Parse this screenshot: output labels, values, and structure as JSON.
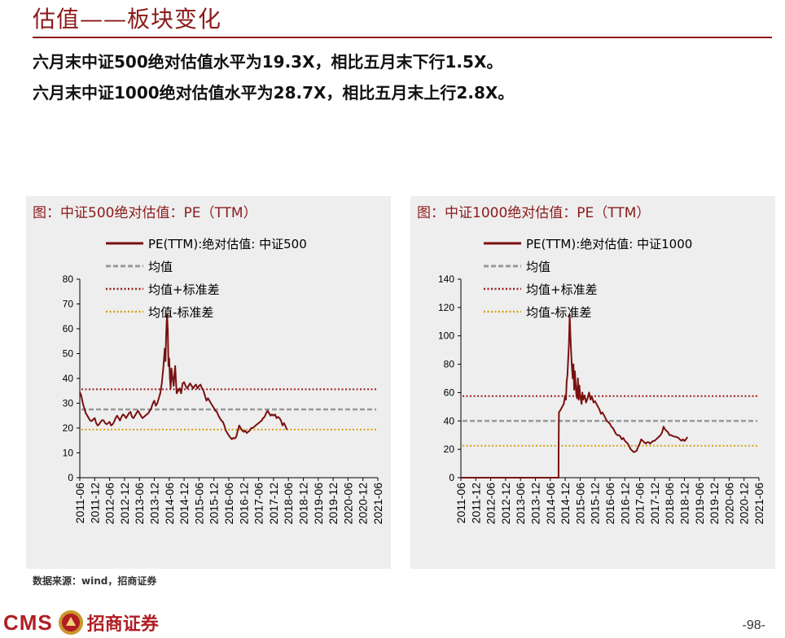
{
  "page": {
    "title": "估值——板块变化",
    "summary_lines": [
      "六月末中证500绝对估值水平为19.3X，相比五月末下行1.5X。",
      "六月末中证1000绝对估值水平为28.7X，相比五月末上行2.8X。"
    ],
    "source": "数据来源：wind，招商证券",
    "logo_text": "CMS",
    "logo_name": "招商证券",
    "page_number": "-98-"
  },
  "colors": {
    "title": "#8b1a1a",
    "series": "#7a1010",
    "mean": "#999999",
    "upper": "#9b1b1b",
    "lower": "#d4a017",
    "panel_bg": "#eeeeee",
    "brand": "#b01e23"
  },
  "chart_data": [
    {
      "type": "line",
      "panel_title": "图：中证500绝对估值：PE（TTM）",
      "legend": [
        "PE(TTM):绝对估值: 中证500",
        "均值",
        "均值+标准差",
        "均值-标准差"
      ],
      "legend_position": "top-left",
      "x_ticks": [
        "2011-06",
        "2011-12",
        "2012-06",
        "2012-12",
        "2013-06",
        "2013-12",
        "2014-06",
        "2014-12",
        "2015-06",
        "2015-12",
        "2016-06",
        "2016-12",
        "2017-06",
        "2017-12",
        "2018-06",
        "2018-12",
        "2019-06",
        "2019-12",
        "2020-06",
        "2020-12",
        "2021-06"
      ],
      "ylim": [
        0,
        80
      ],
      "y_ticks": [
        0,
        10,
        20,
        30,
        40,
        50,
        60,
        70,
        80
      ],
      "grid": false,
      "mean": 27.5,
      "mean_plus_std": 35.6,
      "mean_minus_std": 19.4,
      "series": [
        {
          "name": "PE(TTM):绝对估值: 中证500",
          "points": [
            [
              0,
              34.5
            ],
            [
              0.1,
              33
            ],
            [
              0.2,
              30
            ],
            [
              0.3,
              28
            ],
            [
              0.4,
              26
            ],
            [
              0.5,
              25
            ],
            [
              0.6,
              24
            ],
            [
              0.7,
              23
            ],
            [
              0.8,
              22.8
            ],
            [
              0.9,
              23.5
            ],
            [
              1.0,
              24
            ],
            [
              1.1,
              22
            ],
            [
              1.2,
              21
            ],
            [
              1.3,
              21.5
            ],
            [
              1.4,
              22.5
            ],
            [
              1.5,
              23.2
            ],
            [
              1.6,
              23
            ],
            [
              1.7,
              22
            ],
            [
              1.8,
              21.5
            ],
            [
              1.9,
              22
            ],
            [
              2.0,
              22.5
            ],
            [
              2.1,
              21
            ],
            [
              2.2,
              21.5
            ],
            [
              2.3,
              22.5
            ],
            [
              2.4,
              24
            ],
            [
              2.5,
              25
            ],
            [
              2.6,
              24
            ],
            [
              2.7,
              23
            ],
            [
              2.8,
              24.5
            ],
            [
              2.9,
              25.5
            ],
            [
              3.0,
              25
            ],
            [
              3.1,
              24
            ],
            [
              3.2,
              25
            ],
            [
              3.3,
              26
            ],
            [
              3.4,
              26.5
            ],
            [
              3.5,
              24.5
            ],
            [
              3.6,
              24
            ],
            [
              3.7,
              25
            ],
            [
              3.8,
              26
            ],
            [
              3.9,
              27
            ],
            [
              4.0,
              26
            ],
            [
              4.1,
              25
            ],
            [
              4.2,
              24
            ],
            [
              4.3,
              24.5
            ],
            [
              4.4,
              25
            ],
            [
              4.5,
              25.5
            ],
            [
              4.6,
              26
            ],
            [
              4.7,
              27
            ],
            [
              4.8,
              28
            ],
            [
              4.9,
              30
            ],
            [
              5.0,
              31
            ],
            [
              5.1,
              29
            ],
            [
              5.2,
              30
            ],
            [
              5.3,
              32
            ],
            [
              5.4,
              34
            ],
            [
              5.5,
              38
            ],
            [
              5.6,
              44
            ],
            [
              5.7,
              52
            ],
            [
              5.75,
              47
            ],
            [
              5.8,
              58
            ],
            [
              5.85,
              66
            ],
            [
              5.9,
              60
            ],
            [
              5.95,
              45
            ],
            [
              6.0,
              48
            ],
            [
              6.05,
              40
            ],
            [
              6.1,
              36
            ],
            [
              6.15,
              44
            ],
            [
              6.2,
              41
            ],
            [
              6.3,
              37
            ],
            [
              6.35,
              42
            ],
            [
              6.4,
              45
            ],
            [
              6.5,
              34
            ],
            [
              6.6,
              35
            ],
            [
              6.7,
              36
            ],
            [
              6.8,
              34
            ],
            [
              6.9,
              38
            ],
            [
              7.0,
              38.5
            ],
            [
              7.1,
              37
            ],
            [
              7.2,
              36
            ],
            [
              7.3,
              37
            ],
            [
              7.4,
              38
            ],
            [
              7.5,
              37
            ],
            [
              7.6,
              36
            ],
            [
              7.7,
              37
            ],
            [
              7.8,
              37.5
            ],
            [
              7.9,
              36
            ],
            [
              8.0,
              37
            ],
            [
              8.1,
              37.5
            ],
            [
              8.2,
              36
            ],
            [
              8.3,
              35
            ],
            [
              8.4,
              33
            ],
            [
              8.5,
              31
            ],
            [
              8.6,
              32
            ],
            [
              8.7,
              31
            ],
            [
              8.8,
              30
            ],
            [
              8.9,
              29
            ],
            [
              9.0,
              28
            ],
            [
              9.1,
              27
            ],
            [
              9.2,
              26.5
            ],
            [
              9.3,
              25
            ],
            [
              9.4,
              24
            ],
            [
              9.5,
              23
            ],
            [
              9.6,
              22.5
            ],
            [
              9.7,
              21
            ],
            [
              9.8,
              19
            ],
            [
              9.9,
              18
            ],
            [
              10.0,
              17
            ],
            [
              10.1,
              16.2
            ],
            [
              10.2,
              15.5
            ],
            [
              10.3,
              16
            ],
            [
              10.4,
              15.8
            ],
            [
              10.5,
              16.5
            ],
            [
              10.6,
              19
            ],
            [
              10.7,
              21
            ],
            [
              10.8,
              20
            ],
            [
              10.9,
              19
            ],
            [
              11.0,
              18.5
            ],
            [
              11.1,
              19
            ],
            [
              11.2,
              18
            ],
            [
              11.3,
              18.5
            ],
            [
              11.4,
              19
            ],
            [
              11.5,
              20
            ],
            [
              11.6,
              20
            ],
            [
              11.7,
              20.5
            ],
            [
              11.8,
              21
            ],
            [
              11.9,
              21.5
            ],
            [
              12.0,
              22
            ],
            [
              12.1,
              22.5
            ],
            [
              12.2,
              23
            ],
            [
              12.3,
              24
            ],
            [
              12.4,
              24.5
            ],
            [
              12.5,
              26
            ],
            [
              12.6,
              27
            ],
            [
              12.7,
              26
            ],
            [
              12.8,
              25
            ],
            [
              12.9,
              25.5
            ],
            [
              13.0,
              25
            ],
            [
              13.1,
              25.5
            ],
            [
              13.2,
              24
            ],
            [
              13.3,
              24.5
            ],
            [
              13.4,
              24
            ],
            [
              13.5,
              23
            ],
            [
              13.6,
              21
            ],
            [
              13.7,
              22
            ],
            [
              13.8,
              20.8
            ],
            [
              13.9,
              19.3
            ]
          ]
        }
      ]
    },
    {
      "type": "line",
      "panel_title": "图：中证1000绝对估值：PE（TTM）",
      "legend": [
        "PE(TTM):绝对估值: 中证1000",
        "均值",
        "均值+标准差",
        "均值-标准差"
      ],
      "legend_position": "top-left",
      "x_ticks": [
        "2011-06",
        "2011-12",
        "2012-06",
        "2012-12",
        "2013-06",
        "2013-12",
        "2014-06",
        "2014-12",
        "2015-06",
        "2015-12",
        "2016-06",
        "2016-12",
        "2017-06",
        "2017-12",
        "2018-06",
        "2018-12",
        "2019-06",
        "2019-12",
        "2020-06",
        "2020-12",
        "2021-06"
      ],
      "ylim": [
        0,
        140
      ],
      "y_ticks": [
        0,
        20,
        40,
        60,
        80,
        100,
        120,
        140
      ],
      "grid": false,
      "mean": 40,
      "mean_plus_std": 57.5,
      "mean_minus_std": 22.5,
      "series": [
        {
          "name": "PE(TTM):绝对估值: 中证1000",
          "points": [
            [
              0,
              0
            ],
            [
              6.55,
              0
            ],
            [
              6.56,
              20
            ],
            [
              6.58,
              46
            ],
            [
              6.7,
              48
            ],
            [
              6.8,
              50
            ],
            [
              6.9,
              52
            ],
            [
              7.0,
              58
            ],
            [
              7.05,
              55
            ],
            [
              7.1,
              68
            ],
            [
              7.15,
              72
            ],
            [
              7.2,
              84
            ],
            [
              7.25,
              95
            ],
            [
              7.3,
              115
            ],
            [
              7.35,
              100
            ],
            [
              7.4,
              88
            ],
            [
              7.45,
              78
            ],
            [
              7.5,
              70
            ],
            [
              7.55,
              80
            ],
            [
              7.6,
              62
            ],
            [
              7.65,
              75
            ],
            [
              7.7,
              66
            ],
            [
              7.75,
              58
            ],
            [
              7.8,
              56
            ],
            [
              7.85,
              70
            ],
            [
              7.9,
              55
            ],
            [
              7.95,
              65
            ],
            [
              8.0,
              58
            ],
            [
              8.1,
              52
            ],
            [
              8.15,
              60
            ],
            [
              8.2,
              55
            ],
            [
              8.3,
              58
            ],
            [
              8.4,
              53
            ],
            [
              8.5,
              56
            ],
            [
              8.6,
              60
            ],
            [
              8.7,
              55
            ],
            [
              8.8,
              57
            ],
            [
              8.9,
              53
            ],
            [
              9.0,
              54
            ],
            [
              9.1,
              52
            ],
            [
              9.2,
              50
            ],
            [
              9.3,
              48
            ],
            [
              9.4,
              45
            ],
            [
              9.5,
              46
            ],
            [
              9.6,
              44
            ],
            [
              9.7,
              42
            ],
            [
              9.8,
              40
            ],
            [
              9.9,
              39
            ],
            [
              10.0,
              38
            ],
            [
              10.1,
              36
            ],
            [
              10.2,
              35
            ],
            [
              10.3,
              33
            ],
            [
              10.4,
              31
            ],
            [
              10.5,
              30
            ],
            [
              10.6,
              30
            ],
            [
              10.7,
              29
            ],
            [
              10.8,
              27
            ],
            [
              10.9,
              28
            ],
            [
              11.0,
              26
            ],
            [
              11.1,
              25
            ],
            [
              11.2,
              24
            ],
            [
              11.3,
              22
            ],
            [
              11.4,
              20
            ],
            [
              11.5,
              19
            ],
            [
              11.6,
              18
            ],
            [
              11.7,
              18.5
            ],
            [
              11.8,
              19
            ],
            [
              11.9,
              22
            ],
            [
              12.0,
              24
            ],
            [
              12.1,
              27
            ],
            [
              12.2,
              26
            ],
            [
              12.3,
              25
            ],
            [
              12.4,
              24
            ],
            [
              12.5,
              25
            ],
            [
              12.6,
              25
            ],
            [
              12.7,
              24
            ],
            [
              12.8,
              25
            ],
            [
              12.9,
              26
            ],
            [
              13.0,
              26
            ],
            [
              13.1,
              27
            ],
            [
              13.2,
              28
            ],
            [
              13.3,
              29
            ],
            [
              13.4,
              30
            ],
            [
              13.5,
              32
            ],
            [
              13.6,
              36
            ],
            [
              13.7,
              34
            ],
            [
              13.8,
              33
            ],
            [
              13.9,
              32
            ],
            [
              14.0,
              30
            ],
            [
              14.1,
              30
            ],
            [
              14.2,
              29.5
            ],
            [
              14.3,
              29
            ],
            [
              14.4,
              29
            ],
            [
              14.5,
              28.5
            ],
            [
              14.6,
              28
            ],
            [
              14.7,
              27
            ],
            [
              14.8,
              26
            ],
            [
              14.9,
              27
            ],
            [
              15.0,
              25.9
            ],
            [
              15.1,
              27
            ],
            [
              15.2,
              28.7
            ]
          ]
        }
      ]
    }
  ]
}
